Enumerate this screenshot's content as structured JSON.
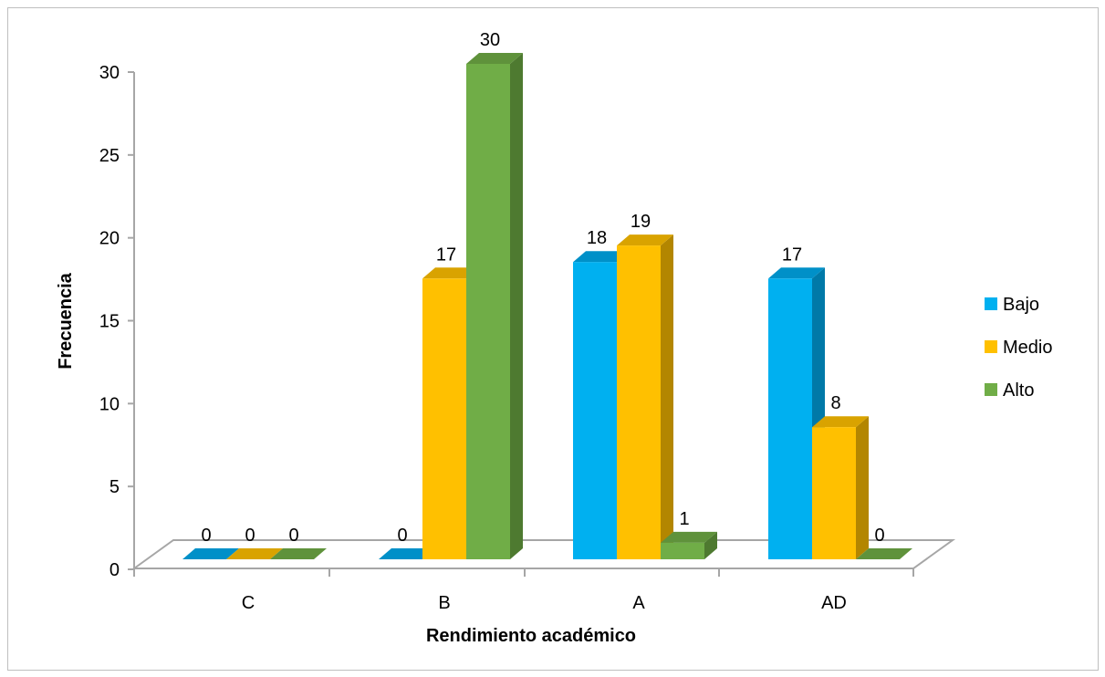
{
  "chart_data": {
    "type": "bar",
    "variant": "3d-clustered-column",
    "categories": [
      "C",
      "B",
      "A",
      "AD"
    ],
    "series": [
      {
        "name": "Bajo",
        "values": [
          0,
          0,
          18,
          17
        ],
        "color": "#00B0F0",
        "side_color": "#0079A8",
        "top_color": "#0090C8"
      },
      {
        "name": "Medio",
        "values": [
          0,
          17,
          19,
          8
        ],
        "color": "#FFC000",
        "side_color": "#B38600",
        "top_color": "#D9A300"
      },
      {
        "name": "Alto",
        "values": [
          0,
          30,
          1,
          0
        ],
        "color": "#70AD47",
        "side_color": "#4E7A30",
        "top_color": "#5F923B"
      }
    ],
    "title": "",
    "xlabel": "Rendimiento académico",
    "ylabel": "Frecuencia",
    "ylim": [
      0,
      30
    ],
    "yticks": [
      0,
      5,
      10,
      15,
      20,
      25,
      30
    ],
    "grid": false,
    "legend_position": "right",
    "data_labels": true
  }
}
